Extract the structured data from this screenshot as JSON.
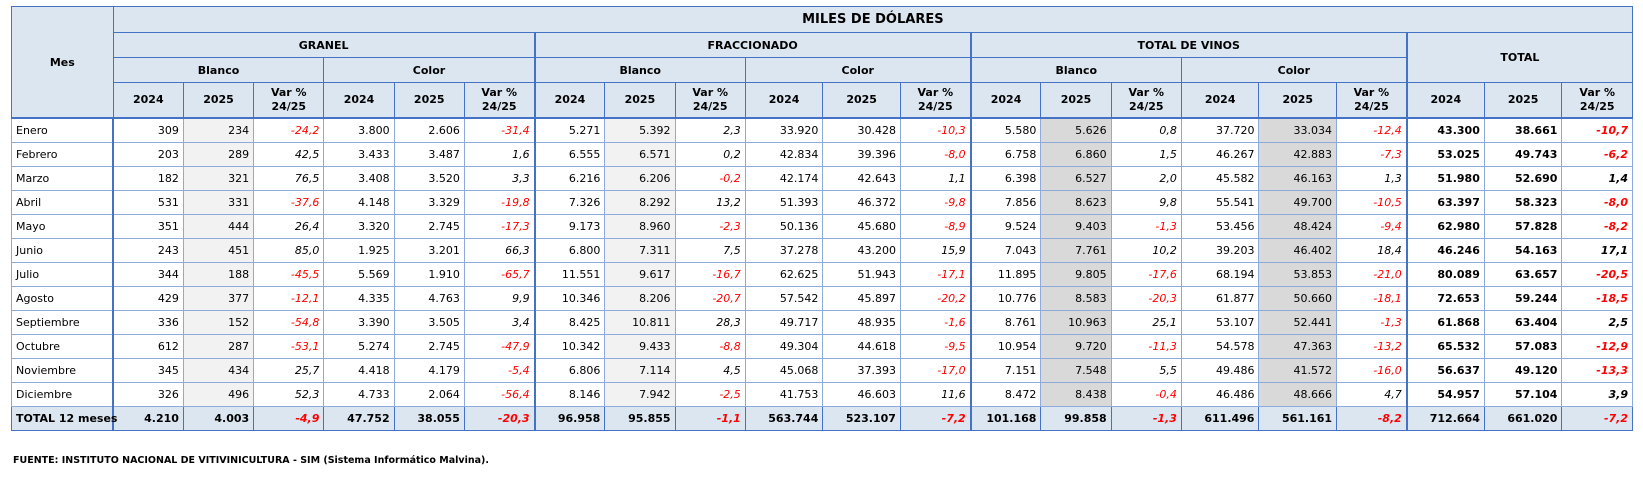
{
  "title": "MILES DE DÓLARES",
  "headers": {
    "mes": "Mes",
    "groups": [
      "GRANEL",
      "FRACCIONADO",
      "TOTAL DE VINOS"
    ],
    "total": "TOTAL",
    "sub": [
      "Blanco",
      "Color"
    ],
    "cols": [
      "2024",
      "2025",
      "Var %\n24/25"
    ]
  },
  "rows": [
    {
      "mes": "Enero",
      "v": [
        "309",
        "234",
        "-24,2",
        "3.800",
        "2.606",
        "-31,4",
        "5.271",
        "5.392",
        "2,3",
        "33.920",
        "30.428",
        "-10,3",
        "5.580",
        "5.626",
        "0,8",
        "37.720",
        "33.034",
        "-12,4",
        "43.300",
        "38.661",
        "-10,7"
      ]
    },
    {
      "mes": "Febrero",
      "v": [
        "203",
        "289",
        "42,5",
        "3.433",
        "3.487",
        "1,6",
        "6.555",
        "6.571",
        "0,2",
        "42.834",
        "39.396",
        "-8,0",
        "6.758",
        "6.860",
        "1,5",
        "46.267",
        "42.883",
        "-7,3",
        "53.025",
        "49.743",
        "-6,2"
      ]
    },
    {
      "mes": "Marzo",
      "v": [
        "182",
        "321",
        "76,5",
        "3.408",
        "3.520",
        "3,3",
        "6.216",
        "6.206",
        "-0,2",
        "42.174",
        "42.643",
        "1,1",
        "6.398",
        "6.527",
        "2,0",
        "45.582",
        "46.163",
        "1,3",
        "51.980",
        "52.690",
        "1,4"
      ]
    },
    {
      "mes": "Abril",
      "v": [
        "531",
        "331",
        "-37,6",
        "4.148",
        "3.329",
        "-19,8",
        "7.326",
        "8.292",
        "13,2",
        "51.393",
        "46.372",
        "-9,8",
        "7.856",
        "8.623",
        "9,8",
        "55.541",
        "49.700",
        "-10,5",
        "63.397",
        "58.323",
        "-8,0"
      ]
    },
    {
      "mes": "Mayo",
      "v": [
        "351",
        "444",
        "26,4",
        "3.320",
        "2.745",
        "-17,3",
        "9.173",
        "8.960",
        "-2,3",
        "50.136",
        "45.680",
        "-8,9",
        "9.524",
        "9.403",
        "-1,3",
        "53.456",
        "48.424",
        "-9,4",
        "62.980",
        "57.828",
        "-8,2"
      ]
    },
    {
      "mes": "Junio",
      "v": [
        "243",
        "451",
        "85,0",
        "1.925",
        "3.201",
        "66,3",
        "6.800",
        "7.311",
        "7,5",
        "37.278",
        "43.200",
        "15,9",
        "7.043",
        "7.761",
        "10,2",
        "39.203",
        "46.402",
        "18,4",
        "46.246",
        "54.163",
        "17,1"
      ]
    },
    {
      "mes": "Julio",
      "v": [
        "344",
        "188",
        "-45,5",
        "5.569",
        "1.910",
        "-65,7",
        "11.551",
        "9.617",
        "-16,7",
        "62.625",
        "51.943",
        "-17,1",
        "11.895",
        "9.805",
        "-17,6",
        "68.194",
        "53.853",
        "-21,0",
        "80.089",
        "63.657",
        "-20,5"
      ]
    },
    {
      "mes": "Agosto",
      "v": [
        "429",
        "377",
        "-12,1",
        "4.335",
        "4.763",
        "9,9",
        "10.346",
        "8.206",
        "-20,7",
        "57.542",
        "45.897",
        "-20,2",
        "10.776",
        "8.583",
        "-20,3",
        "61.877",
        "50.660",
        "-18,1",
        "72.653",
        "59.244",
        "-18,5"
      ]
    },
    {
      "mes": "Septiembre",
      "v": [
        "336",
        "152",
        "-54,8",
        "3.390",
        "3.505",
        "3,4",
        "8.425",
        "10.811",
        "28,3",
        "49.717",
        "48.935",
        "-1,6",
        "8.761",
        "10.963",
        "25,1",
        "53.107",
        "52.441",
        "-1,3",
        "61.868",
        "63.404",
        "2,5"
      ]
    },
    {
      "mes": "Octubre",
      "v": [
        "612",
        "287",
        "-53,1",
        "5.274",
        "2.745",
        "-47,9",
        "10.342",
        "9.433",
        "-8,8",
        "49.304",
        "44.618",
        "-9,5",
        "10.954",
        "9.720",
        "-11,3",
        "54.578",
        "47.363",
        "-13,2",
        "65.532",
        "57.083",
        "-12,9"
      ]
    },
    {
      "mes": "Noviembre",
      "v": [
        "345",
        "434",
        "25,7",
        "4.418",
        "4.179",
        "-5,4",
        "6.806",
        "7.114",
        "4,5",
        "45.068",
        "37.393",
        "-17,0",
        "7.151",
        "7.548",
        "5,5",
        "49.486",
        "41.572",
        "-16,0",
        "56.637",
        "49.120",
        "-13,3"
      ]
    },
    {
      "mes": "Diciembre",
      "v": [
        "326",
        "496",
        "52,3",
        "4.733",
        "2.064",
        "-56,4",
        "8.146",
        "7.942",
        "-2,5",
        "41.753",
        "46.603",
        "11,6",
        "8.472",
        "8.438",
        "-0,4",
        "46.486",
        "48.666",
        "4,7",
        "54.957",
        "57.104",
        "3,9"
      ]
    }
  ],
  "total_row": {
    "mes": "TOTAL 12 meses",
    "v": [
      "4.210",
      "4.003",
      "-4,9",
      "47.752",
      "38.055",
      "-20,3",
      "96.958",
      "95.855",
      "-1,1",
      "563.744",
      "523.107",
      "-7,2",
      "101.168",
      "99.858",
      "-1,3",
      "611.496",
      "561.161",
      "-8,2",
      "712.664",
      "661.020",
      "-7,2"
    ]
  },
  "footer": "FUENTE: INSTITUTO NACIONAL DE VITIVINICULTURA - SIM (Sistema Informático Malvina)."
}
